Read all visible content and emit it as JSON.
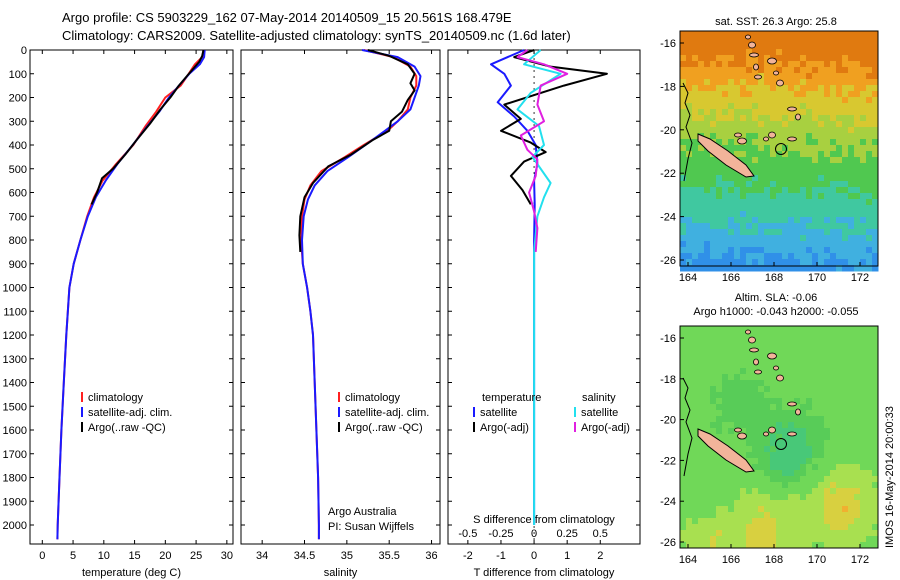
{
  "header": {
    "line1": "Argo profile: CS 5903229_162 07-May-2014 20140509_15 20.561S 168.479E",
    "line2": "Climatology: CARS2009. Satellite-adjusted climatology: synTS_20140509.nc (1.6d later)"
  },
  "stamp": "IMOS 16-May-2014 20:00:33",
  "credits": {
    "line1": "Argo Australia",
    "line2": "PI: Susan Wijffels"
  },
  "colors": {
    "climatology": "#ff2020",
    "satellite": "#1a1aff",
    "argo": "#000000",
    "sal_satellite": "#22e0ee",
    "sal_argo": "#e020e0",
    "coast_fill": "#f2b49a"
  },
  "chart_data": [
    {
      "type": "line",
      "panel": "temperature",
      "xlabel": "temperature (deg C)",
      "xlim": [
        -2,
        31
      ],
      "ylim": [
        2080,
        0
      ],
      "xticks": [
        0,
        5,
        10,
        15,
        20,
        25,
        30
      ],
      "yticks": [
        0,
        100,
        200,
        300,
        400,
        500,
        600,
        700,
        800,
        900,
        1000,
        1100,
        1200,
        1300,
        1400,
        1500,
        1600,
        1700,
        1800,
        1900,
        2000
      ],
      "legend": [
        "climatology",
        "satellite-adj. clim.",
        "Argo(..raw -QC)"
      ],
      "series": [
        {
          "name": "climatology",
          "color": "#ff2020",
          "points": [
            [
              26.2,
              0
            ],
            [
              26.0,
              30
            ],
            [
              24.8,
              60
            ],
            [
              23.8,
              100
            ],
            [
              22.5,
              150
            ],
            [
              20.0,
              200
            ],
            [
              18.5,
              260
            ],
            [
              16.8,
              320
            ],
            [
              14.8,
              400
            ],
            [
              12.0,
              480
            ],
            [
              9.8,
              550
            ],
            [
              8.4,
              620
            ],
            [
              7.3,
              700
            ],
            [
              6.2,
              800
            ],
            [
              5.1,
              900
            ],
            [
              4.4,
              1000
            ],
            [
              3.9,
              1200
            ],
            [
              3.5,
              1400
            ],
            [
              3.1,
              1600
            ],
            [
              2.8,
              1800
            ],
            [
              2.5,
              2000
            ],
            [
              2.45,
              2060
            ]
          ]
        },
        {
          "name": "satellite-adj. clim.",
          "color": "#1a1aff",
          "points": [
            [
              26.4,
              0
            ],
            [
              26.3,
              30
            ],
            [
              25.6,
              60
            ],
            [
              23.9,
              100
            ],
            [
              22.2,
              150
            ],
            [
              20.6,
              200
            ],
            [
              19.0,
              260
            ],
            [
              17.1,
              320
            ],
            [
              14.7,
              400
            ],
            [
              12.2,
              480
            ],
            [
              10.3,
              550
            ],
            [
              8.7,
              620
            ],
            [
              7.4,
              700
            ],
            [
              6.2,
              800
            ],
            [
              5.1,
              900
            ],
            [
              4.4,
              1000
            ],
            [
              3.9,
              1200
            ],
            [
              3.5,
              1400
            ],
            [
              3.1,
              1600
            ],
            [
              2.8,
              1800
            ],
            [
              2.5,
              2000
            ],
            [
              2.45,
              2060
            ]
          ]
        },
        {
          "name": "Argo(..raw -QC)",
          "color": "#000000",
          "points": [
            [
              26.2,
              0
            ],
            [
              26.0,
              25
            ],
            [
              25.5,
              50
            ],
            [
              24.5,
              80
            ],
            [
              23.5,
              110
            ],
            [
              22.2,
              150
            ],
            [
              20.8,
              200
            ],
            [
              19.2,
              250
            ],
            [
              17.5,
              310
            ],
            [
              15.3,
              380
            ],
            [
              13.5,
              440
            ],
            [
              11.5,
              500
            ],
            [
              9.7,
              540
            ],
            [
              8.9,
              600
            ],
            [
              8.0,
              650
            ]
          ]
        }
      ]
    },
    {
      "type": "line",
      "panel": "salinity",
      "xlabel": "salinity",
      "xlim": [
        33.75,
        36.1
      ],
      "ylim": [
        2080,
        0
      ],
      "xticks": [
        34,
        34.5,
        35,
        35.5,
        36
      ],
      "legend": [
        "climatology",
        "satellite-adj. clim.",
        "Argo(..raw -QC)"
      ],
      "series": [
        {
          "name": "climatology",
          "color": "#ff2020",
          "points": [
            [
              35.2,
              0
            ],
            [
              35.55,
              30
            ],
            [
              35.75,
              70
            ],
            [
              35.82,
              110
            ],
            [
              35.82,
              150
            ],
            [
              35.75,
              200
            ],
            [
              35.72,
              250
            ],
            [
              35.6,
              300
            ],
            [
              35.48,
              340
            ],
            [
              35.2,
              400
            ],
            [
              34.98,
              450
            ],
            [
              34.7,
              510
            ],
            [
              34.57,
              570
            ],
            [
              34.5,
              630
            ],
            [
              34.47,
              700
            ],
            [
              34.46,
              800
            ],
            [
              34.48,
              900
            ],
            [
              34.53,
              1000
            ],
            [
              34.57,
              1100
            ],
            [
              34.6,
              1200
            ],
            [
              34.62,
              1400
            ],
            [
              34.64,
              1600
            ],
            [
              34.66,
              1800
            ],
            [
              34.67,
              2000
            ],
            [
              34.67,
              2060
            ]
          ]
        },
        {
          "name": "satellite-adj. clim.",
          "color": "#1a1aff",
          "points": [
            [
              35.18,
              0
            ],
            [
              35.6,
              30
            ],
            [
              35.8,
              70
            ],
            [
              35.87,
              110
            ],
            [
              35.85,
              150
            ],
            [
              35.8,
              200
            ],
            [
              35.75,
              250
            ],
            [
              35.6,
              300
            ],
            [
              35.45,
              340
            ],
            [
              35.22,
              400
            ],
            [
              35.02,
              450
            ],
            [
              34.77,
              510
            ],
            [
              34.62,
              570
            ],
            [
              34.54,
              630
            ],
            [
              34.49,
              700
            ],
            [
              34.47,
              800
            ],
            [
              34.48,
              900
            ],
            [
              34.53,
              1000
            ],
            [
              34.57,
              1100
            ],
            [
              34.6,
              1200
            ],
            [
              34.62,
              1400
            ],
            [
              34.64,
              1600
            ],
            [
              34.66,
              1800
            ],
            [
              34.67,
              2000
            ],
            [
              34.67,
              2060
            ]
          ]
        },
        {
          "name": "Argo(..raw -QC)",
          "color": "#000000",
          "points": [
            [
              35.25,
              0
            ],
            [
              35.5,
              25
            ],
            [
              35.72,
              60
            ],
            [
              35.8,
              100
            ],
            [
              35.75,
              140
            ],
            [
              35.8,
              170
            ],
            [
              35.72,
              210
            ],
            [
              35.65,
              260
            ],
            [
              35.52,
              300
            ],
            [
              35.5,
              340
            ],
            [
              35.3,
              380
            ],
            [
              35.05,
              440
            ],
            [
              34.78,
              490
            ],
            [
              34.6,
              560
            ],
            [
              34.5,
              620
            ],
            [
              34.45,
              700
            ],
            [
              34.44,
              780
            ],
            [
              34.45,
              850
            ]
          ]
        }
      ]
    },
    {
      "type": "line",
      "panel": "difference",
      "xlabel": "T difference from climatology",
      "x2label": "S difference from climatology",
      "xlim": [
        -2.6,
        3.2
      ],
      "ylim": [
        2080,
        0
      ],
      "xticks": [
        -2,
        -1,
        0,
        1,
        2
      ],
      "x2ticks": [
        "-0.5",
        "-0.25",
        "0",
        "0.25",
        "0.5"
      ],
      "x2positions": [
        -2,
        -1,
        0,
        1,
        2
      ],
      "legend_left": {
        "header": "temperature",
        "items": [
          "satellite",
          "Argo(-adj)"
        ]
      },
      "legend_right": {
        "header": "salinity",
        "items": [
          "satellite",
          "Argo(-adj)"
        ]
      },
      "series": [
        {
          "name": "temperature satellite",
          "color": "#1a1aff",
          "points": [
            [
              -0.3,
              0
            ],
            [
              -1.3,
              60
            ],
            [
              -0.9,
              100
            ],
            [
              -0.7,
              150
            ],
            [
              -1.1,
              220
            ],
            [
              -0.6,
              280
            ],
            [
              -0.2,
              340
            ],
            [
              0.05,
              400
            ],
            [
              0.1,
              480
            ],
            [
              0.0,
              550
            ],
            [
              0.02,
              650
            ],
            [
              0,
              800
            ],
            [
              0,
              1000
            ],
            [
              0,
              1300
            ],
            [
              0,
              1600
            ],
            [
              0,
              2000
            ]
          ]
        },
        {
          "name": "temperature Argo(-adj)",
          "color": "#000000",
          "points": [
            [
              0,
              0
            ],
            [
              -0.6,
              30
            ],
            [
              0.5,
              70
            ],
            [
              2.2,
              100
            ],
            [
              0.9,
              150
            ],
            [
              -0.9,
              230
            ],
            [
              -0.4,
              290
            ],
            [
              -1.0,
              340
            ],
            [
              -0.1,
              390
            ],
            [
              0.35,
              430
            ],
            [
              -0.3,
              470
            ],
            [
              -0.7,
              530
            ],
            [
              -0.35,
              590
            ],
            [
              -0.1,
              650
            ]
          ]
        },
        {
          "name": "salinity satellite",
          "color": "#22e0ee",
          "points": [
            [
              0.2,
              0
            ],
            [
              -0.3,
              60
            ],
            [
              0.8,
              100
            ],
            [
              -0.1,
              180
            ],
            [
              -0.5,
              250
            ],
            [
              0.15,
              320
            ],
            [
              0.3,
              400
            ],
            [
              -0.05,
              450
            ],
            [
              0.5,
              560
            ],
            [
              0.3,
              620
            ],
            [
              0.1,
              700
            ],
            [
              0,
              850
            ],
            [
              0,
              1100
            ],
            [
              0,
              1400
            ],
            [
              0,
              1700
            ],
            [
              0,
              2000
            ]
          ]
        },
        {
          "name": "salinity Argo(-adj)",
          "color": "#e020e0",
          "points": [
            [
              -0.2,
              0
            ],
            [
              -0.5,
              30
            ],
            [
              0.3,
              60
            ],
            [
              1.0,
              100
            ],
            [
              0.2,
              150
            ],
            [
              0.1,
              230
            ],
            [
              0.3,
              300
            ],
            [
              -0.4,
              360
            ],
            [
              -0.2,
              420
            ],
            [
              0.1,
              460
            ],
            [
              0.05,
              530
            ],
            [
              -0.15,
              600
            ],
            [
              0.0,
              680
            ],
            [
              0.1,
              750
            ],
            [
              0.05,
              850
            ]
          ]
        }
      ]
    }
  ],
  "maps": {
    "sst": {
      "title": "sat. SST: 26.3 Argo: 25.8",
      "xticks": [
        "164",
        "166",
        "168",
        "170",
        "172"
      ],
      "yticks": [
        "-16",
        "-18",
        "-20",
        "-22",
        "-24",
        "-26"
      ]
    },
    "sla": {
      "title_line1": "Altim. SLA: -0.06",
      "title_line2": "Argo h1000: -0.043 h2000: -0.055",
      "xticks": [
        "164",
        "166",
        "168",
        "170",
        "172"
      ],
      "yticks": [
        "-16",
        "-18",
        "-20",
        "-22",
        "-24",
        "-26"
      ]
    }
  }
}
